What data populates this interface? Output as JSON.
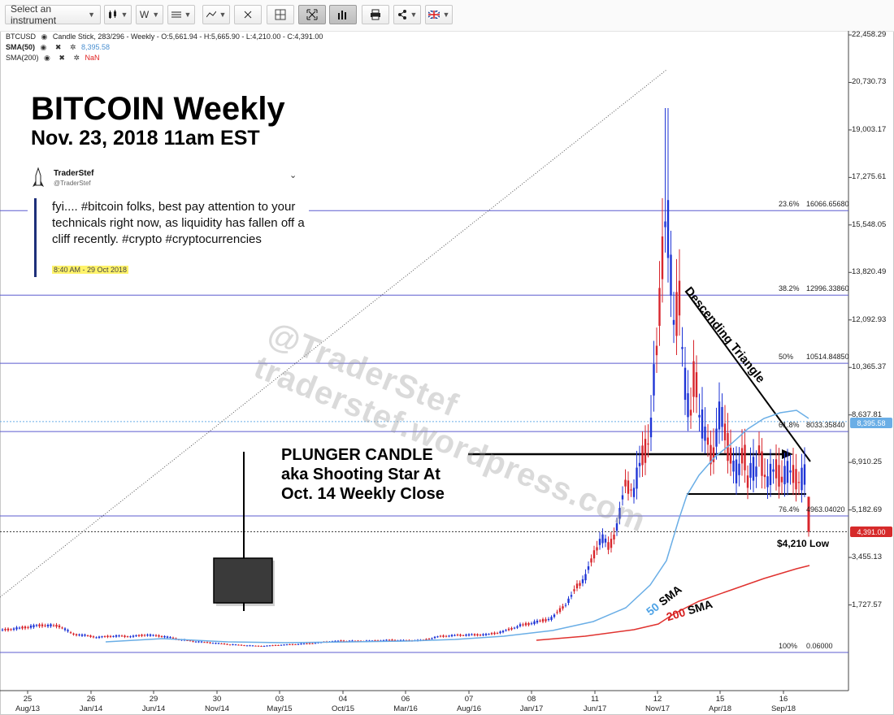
{
  "toolbar": {
    "instrument_placeholder": "Select an instrument",
    "interval": "W"
  },
  "legend": {
    "symbol": "BTCUSD",
    "style": "Candle Stick, 283/296 - Weekly - O:5,661.94 - H:5,665.90 - L:4,210.00 - C:4,391.00",
    "sma50_name": "SMA(50)",
    "sma50_value": "8,395.58",
    "sma200_name": "SMA(200)",
    "sma200_value": "NaN"
  },
  "annotations": {
    "title": "BITCOIN Weekly",
    "subtitle": "Nov. 23, 2018 11am EST",
    "tweet_name": "TraderStef",
    "tweet_handle": "@TraderStef",
    "tweet_text": "fyi.... #bitcoin folks, best pay attention to your technicals right now, as liquidity has fallen off a cliff recently. #crypto #cryptocurrencies",
    "tweet_time": "8:40 AM - 29 Oct 2018",
    "plunger_1": "PLUNGER CANDLE",
    "plunger_2": "aka Shooting Star At",
    "plunger_3": "Oct. 14 Weekly Close",
    "descending": "Descending Triangle",
    "low_label": "$4,210 Low",
    "watermark": "traderstef.wordpress.com",
    "watermark_handle": "@TraderStef",
    "sma50_word": "50",
    "sma200_word": "200",
    "sma_suffix": "SMA"
  },
  "colors": {
    "up": "#1f35d6",
    "down": "#d8262d",
    "fib_line": "#5b5bcf",
    "sma50": "#6aaee6",
    "sma200": "#e0322f",
    "price_box": "#d62a2a",
    "sma_box": "#6aaee6"
  },
  "chart_data": {
    "type": "candlestick",
    "ytick_labels": [
      "22,458.29",
      "20,730.73",
      "19,003.17",
      "17,275.61",
      "15,548.05",
      "13,820.49",
      "12,092.93",
      "10,365.37",
      "8,637.81",
      "6,910.25",
      "5,182.69",
      "3,455.13",
      "1,727.57"
    ],
    "ylim": [
      0,
      22458.29
    ],
    "x_day_labels": [
      "25",
      "26",
      "29",
      "30",
      "03",
      "04",
      "06",
      "07",
      "08",
      "11",
      "12",
      "15",
      "16"
    ],
    "x_month_labels": [
      "Aug/13",
      "Jan/14",
      "Jun/14",
      "Nov/14",
      "May/15",
      "Oct/15",
      "Mar/16",
      "Aug/16",
      "Jan/17",
      "Jun/17",
      "Nov/17",
      "Apr/18",
      "Sep/18"
    ],
    "fib_levels": [
      {
        "pct": "23.6%",
        "value": "16066.65680",
        "y": 16066.66
      },
      {
        "pct": "38.2%",
        "value": "12996.33860",
        "y": 12996.34
      },
      {
        "pct": "50%",
        "value": "10514.84850",
        "y": 10514.85
      },
      {
        "pct": "61.8%",
        "value": "8033.35840",
        "y": 8033.36
      },
      {
        "pct": "76.4%",
        "value": "4963.04020",
        "y": 4963.04
      },
      {
        "pct": "100%",
        "value": "0.06000",
        "y": 0.06
      }
    ],
    "last_price": "4,391.00",
    "sma50_last": "8,395.58",
    "price_low": 4210
  }
}
